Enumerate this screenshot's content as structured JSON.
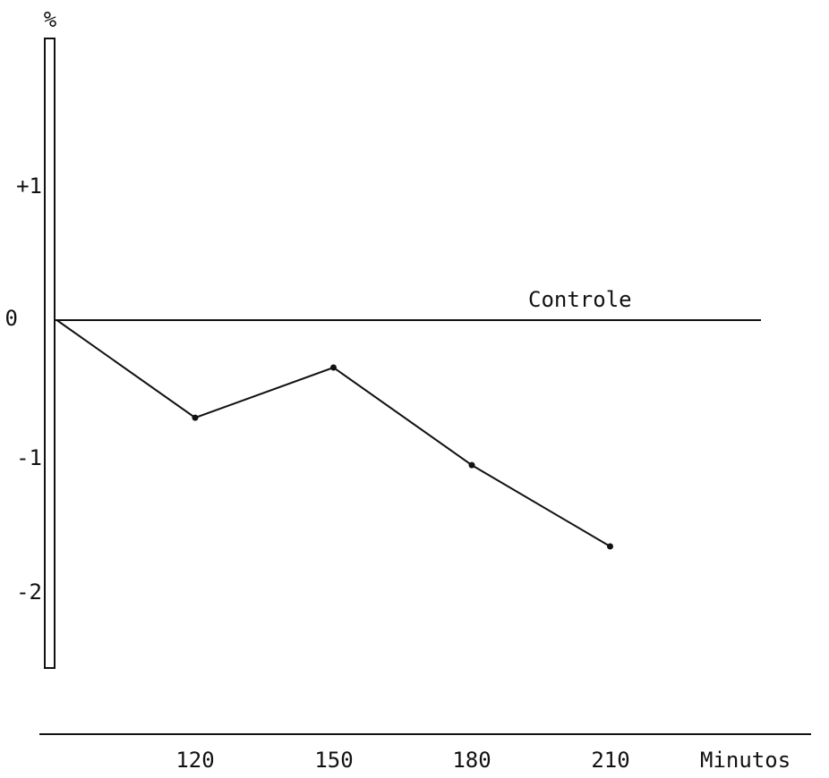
{
  "chart_data": {
    "type": "line",
    "xlabel": "Minutos",
    "ylabel": "%",
    "x_ticks": [
      120,
      150,
      180,
      210
    ],
    "y_ticks": [
      {
        "value": 1,
        "label": "+1"
      },
      {
        "value": 0,
        "label": "0"
      },
      {
        "value": -1,
        "label": "-1"
      },
      {
        "value": -2,
        "label": "-2"
      }
    ],
    "ylim": [
      -2.6,
      2.1
    ],
    "xlim": [
      90,
      250
    ],
    "series": [
      {
        "name": "",
        "x": [
          90,
          120,
          150,
          180,
          210
        ],
        "y": [
          0,
          -0.72,
          -0.35,
          -1.07,
          -1.67
        ]
      }
    ],
    "reference_line": {
      "label": "Controle",
      "y": 0
    },
    "grid": false,
    "legend": "none",
    "colors": {
      "ink": "#111111",
      "background": "#ffffff"
    }
  }
}
